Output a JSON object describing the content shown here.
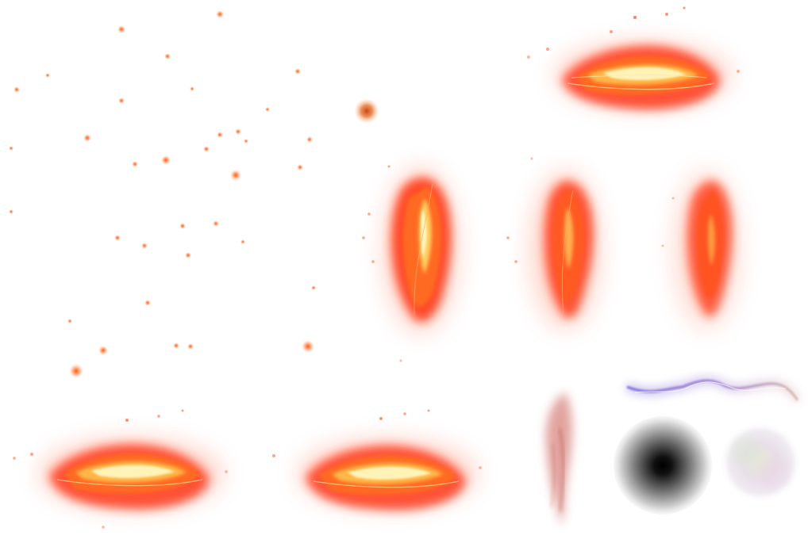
{
  "sheet": {
    "background": "#ffffff",
    "sprites": [
      {
        "id": "slash-horizontal-top-right",
        "kind": "fire-slash"
      },
      {
        "id": "slash-vertical-1",
        "kind": "fire-slash"
      },
      {
        "id": "slash-vertical-2",
        "kind": "fire-slash"
      },
      {
        "id": "slash-vertical-3",
        "kind": "fire-slash"
      },
      {
        "id": "slash-horizontal-bottom-left",
        "kind": "fire-slash"
      },
      {
        "id": "slash-horizontal-bottom-middle",
        "kind": "fire-slash"
      },
      {
        "id": "smoke-wisp",
        "kind": "smoke"
      },
      {
        "id": "purple-lightning",
        "kind": "lightning"
      },
      {
        "id": "dark-radial-gradient",
        "kind": "radial-gradient"
      },
      {
        "id": "pastel-soft-orb",
        "kind": "soft-orb"
      },
      {
        "id": "ember-cluster",
        "kind": "particles"
      }
    ],
    "colors": {
      "fire_core": "#fff4b0",
      "fire_mid": "#ff5a1e",
      "fire_outer": "#ff2a12",
      "ember": "#ff6a1f",
      "lightning": "#8a7ad8",
      "gradient_center": "#000000"
    }
  }
}
